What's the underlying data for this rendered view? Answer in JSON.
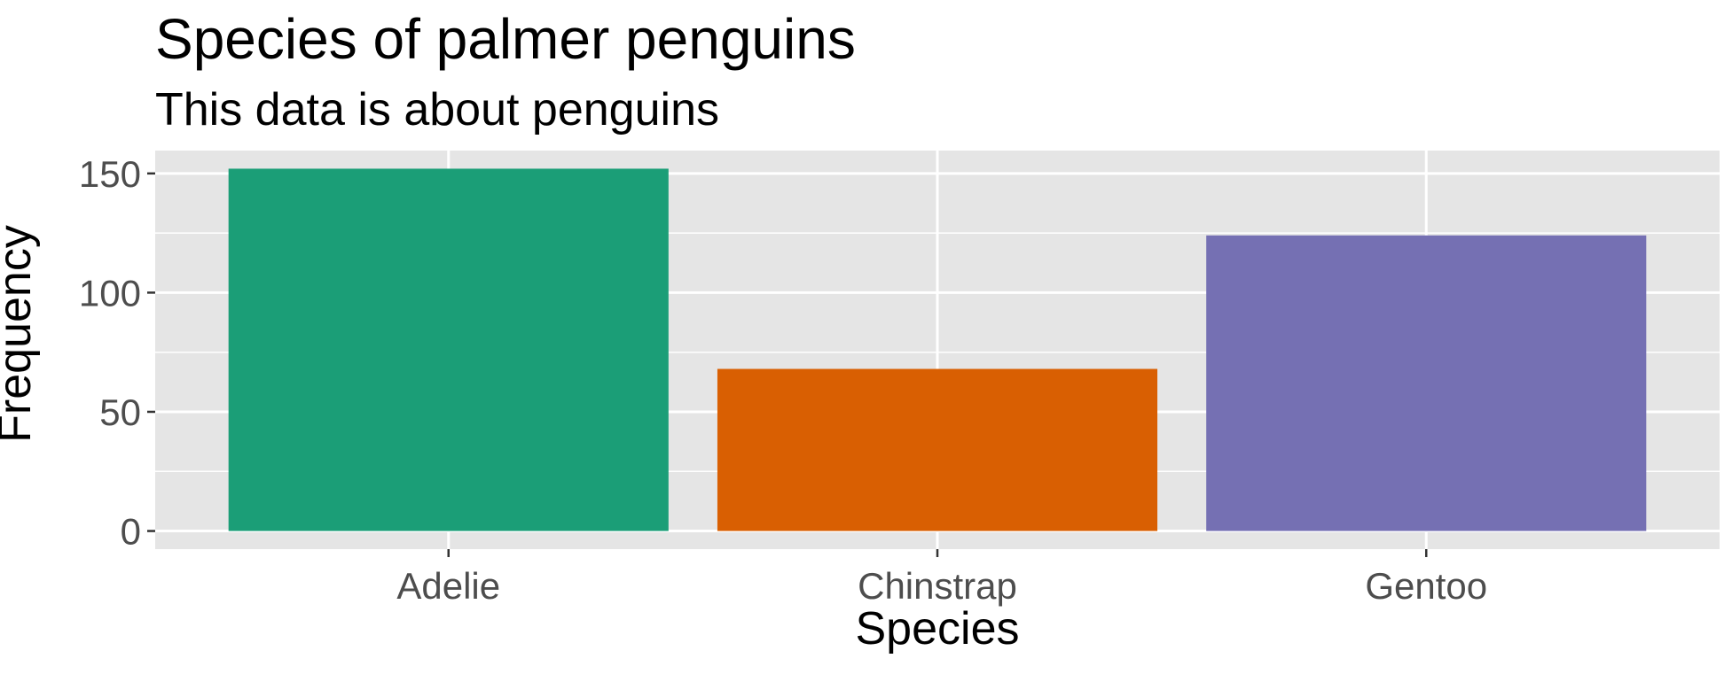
{
  "chart_data": {
    "type": "bar",
    "title": "Species of palmer penguins",
    "subtitle": "This data is about penguins",
    "xlabel": "Species",
    "ylabel": "Frequency",
    "categories": [
      "Adelie",
      "Chinstrap",
      "Gentoo"
    ],
    "values": [
      152,
      68,
      124
    ],
    "colors": [
      "#1b9e77",
      "#d95f02",
      "#7570b3"
    ],
    "ylim": [
      -7.6,
      159.6
    ],
    "yticks": [
      0,
      50,
      100,
      150
    ],
    "ytick_labels": [
      "0",
      "50",
      "100",
      "150"
    ],
    "grid": true,
    "legend": "none",
    "panel_background": "#e5e5e5",
    "gridline_color": "#ffffff"
  }
}
